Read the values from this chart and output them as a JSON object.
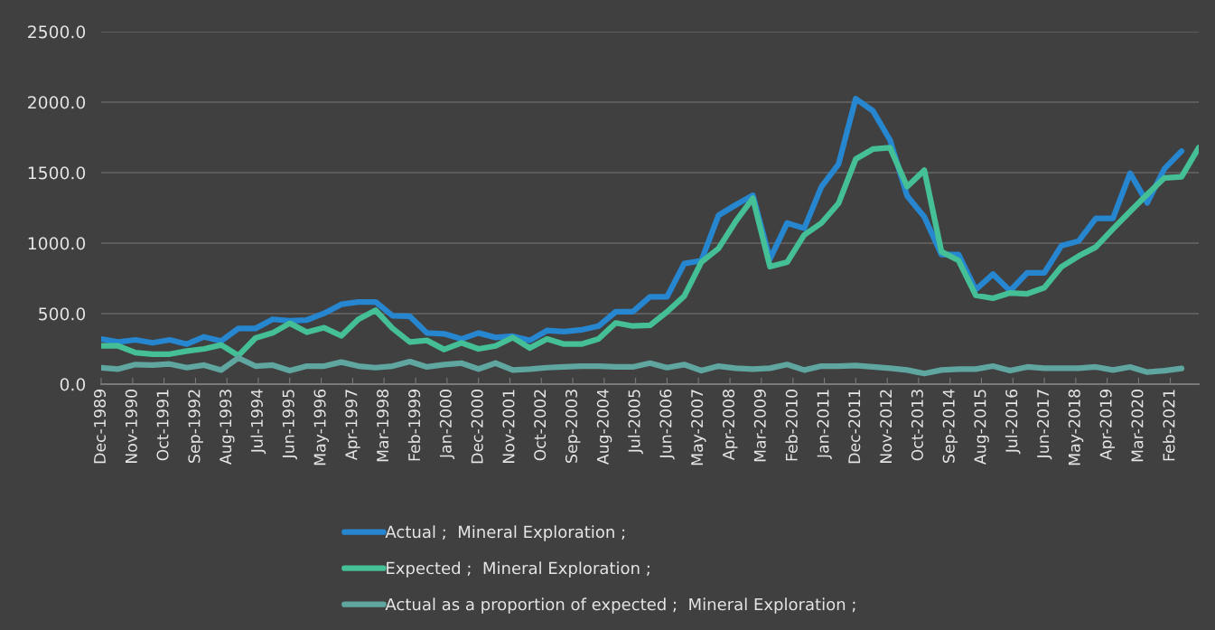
{
  "chart_data": {
    "type": "line",
    "x": [
      "1989-12",
      "1990-06",
      "1990-12",
      "1991-06",
      "1991-12",
      "1992-06",
      "1992-12",
      "1993-06",
      "1993-12",
      "1994-06",
      "1994-12",
      "1995-06",
      "1995-12",
      "1996-06",
      "1996-12",
      "1997-06",
      "1997-12",
      "1998-06",
      "1998-12",
      "1999-06",
      "1999-12",
      "2000-06",
      "2000-12",
      "2001-06",
      "2001-12",
      "2002-06",
      "2002-12",
      "2003-06",
      "2003-12",
      "2004-06",
      "2004-12",
      "2005-06",
      "2005-12",
      "2006-06",
      "2006-12",
      "2007-06",
      "2007-12",
      "2008-06",
      "2008-12",
      "2009-06",
      "2009-12",
      "2010-06",
      "2010-12",
      "2011-06",
      "2011-12",
      "2012-06",
      "2012-12",
      "2013-06",
      "2013-12",
      "2014-06",
      "2014-12",
      "2015-06",
      "2015-12",
      "2016-06",
      "2016-12",
      "2017-06",
      "2017-12",
      "2018-06",
      "2018-12",
      "2019-06",
      "2019-12",
      "2020-06",
      "2020-12",
      "2021-06",
      "2021-12"
    ],
    "series": [
      {
        "name": "Actual ;  Mineral Exploration ;",
        "color": "#2686cf",
        "values": [
          320,
          299,
          314,
          293,
          314,
          284,
          335,
          306,
          395,
          395,
          460,
          449,
          455,
          502,
          566,
          583,
          583,
          485,
          481,
          363,
          357,
          320,
          363,
          331,
          340,
          310,
          380,
          372,
          385,
          412,
          513,
          513,
          620,
          620,
          855,
          876,
          1197,
          1271,
          1340,
          887,
          1143,
          1105,
          1400,
          1560,
          2024,
          1938,
          1731,
          1335,
          1186,
          919,
          919,
          670,
          780,
          662,
          790,
          790,
          983,
          1015,
          1175,
          1175,
          1496,
          1286,
          1528,
          1652,
          null
        ]
      },
      {
        "name": "Expected ;  Mineral Exploration ;",
        "color": "#44bf96",
        "values": [
          271,
          271,
          224,
          213,
          213,
          235,
          250,
          278,
          203,
          327,
          363,
          432,
          368,
          400,
          343,
          460,
          524,
          395,
          299,
          310,
          246,
          293,
          250,
          271,
          331,
          256,
          320,
          284,
          284,
          320,
          434,
          412,
          417,
          513,
          624,
          865,
          962,
          1154,
          1318,
          833,
          865,
          1058,
          1143,
          1282,
          1596,
          1667,
          1677,
          1400,
          1517,
          940,
          876,
          630,
          609,
          647,
          641,
          684,
          833,
          908,
          972,
          1100,
          1224,
          1346,
          1463,
          1470,
          1677
        ]
      },
      {
        "name": "Actual as a proportion of expected ;  Mineral Exploration ;",
        "color": "#5fa6a0",
        "values": [
          117,
          107,
          139,
          135,
          143,
          117,
          135,
          100,
          186,
          128,
          135,
          96,
          128,
          128,
          156,
          128,
          117,
          128,
          160,
          122,
          139,
          149,
          107,
          149,
          100,
          107,
          117,
          122,
          128,
          128,
          122,
          122,
          149,
          117,
          139,
          96,
          128,
          113,
          107,
          113,
          139,
          100,
          128,
          128,
          132,
          122,
          113,
          100,
          75,
          100,
          107,
          107,
          128,
          96,
          122,
          113,
          113,
          113,
          122,
          100,
          122,
          85,
          96,
          111,
          null
        ]
      }
    ],
    "xlim": [
      "1989-12",
      "2021-12"
    ],
    "xticks": [
      {
        "value": "1989-12",
        "label": "Dec-1989"
      },
      {
        "value": "1990-11",
        "label": "Nov-1990"
      },
      {
        "value": "1991-10",
        "label": "Oct-1991"
      },
      {
        "value": "1992-09",
        "label": "Sep-1992"
      },
      {
        "value": "1993-08",
        "label": "Aug-1993"
      },
      {
        "value": "1994-07",
        "label": "Jul-1994"
      },
      {
        "value": "1995-06",
        "label": "Jun-1995"
      },
      {
        "value": "1996-05",
        "label": "May-1996"
      },
      {
        "value": "1997-04",
        "label": "Apr-1997"
      },
      {
        "value": "1998-03",
        "label": "Mar-1998"
      },
      {
        "value": "1999-02",
        "label": "Feb-1999"
      },
      {
        "value": "2000-01",
        "label": "Jan-2000"
      },
      {
        "value": "2000-12",
        "label": "Dec-2000"
      },
      {
        "value": "2001-11",
        "label": "Nov-2001"
      },
      {
        "value": "2002-10",
        "label": "Oct-2002"
      },
      {
        "value": "2003-09",
        "label": "Sep-2003"
      },
      {
        "value": "2004-08",
        "label": "Aug-2004"
      },
      {
        "value": "2005-07",
        "label": "Jul-2005"
      },
      {
        "value": "2006-06",
        "label": "Jun-2006"
      },
      {
        "value": "2007-05",
        "label": "May-2007"
      },
      {
        "value": "2008-04",
        "label": "Apr-2008"
      },
      {
        "value": "2009-03",
        "label": "Mar-2009"
      },
      {
        "value": "2010-02",
        "label": "Feb-2010"
      },
      {
        "value": "2011-01",
        "label": "Jan-2011"
      },
      {
        "value": "2011-12",
        "label": "Dec-2011"
      },
      {
        "value": "2012-11",
        "label": "Nov-2012"
      },
      {
        "value": "2013-10",
        "label": "Oct-2013"
      },
      {
        "value": "2014-09",
        "label": "Sep-2014"
      },
      {
        "value": "2015-08",
        "label": "Aug-2015"
      },
      {
        "value": "2016-07",
        "label": "Jul-2016"
      },
      {
        "value": "2017-06",
        "label": "Jun-2017"
      },
      {
        "value": "2018-05",
        "label": "May-2018"
      },
      {
        "value": "2019-04",
        "label": "Apr-2019"
      },
      {
        "value": "2020-03",
        "label": "Mar-2020"
      },
      {
        "value": "2021-02",
        "label": "Feb-2021"
      }
    ],
    "ylim": [
      0,
      2500
    ],
    "yticks": [
      {
        "value": 0,
        "label": "0.0"
      },
      {
        "value": 500,
        "label": "500.0"
      },
      {
        "value": 1000,
        "label": "1000.0"
      },
      {
        "value": 1500,
        "label": "1500.0"
      },
      {
        "value": 2000,
        "label": "2000.0"
      },
      {
        "value": 2500,
        "label": "2500.0"
      }
    ],
    "grid": "y",
    "legend": "bottom",
    "marker": "none",
    "line_style": "solid"
  }
}
